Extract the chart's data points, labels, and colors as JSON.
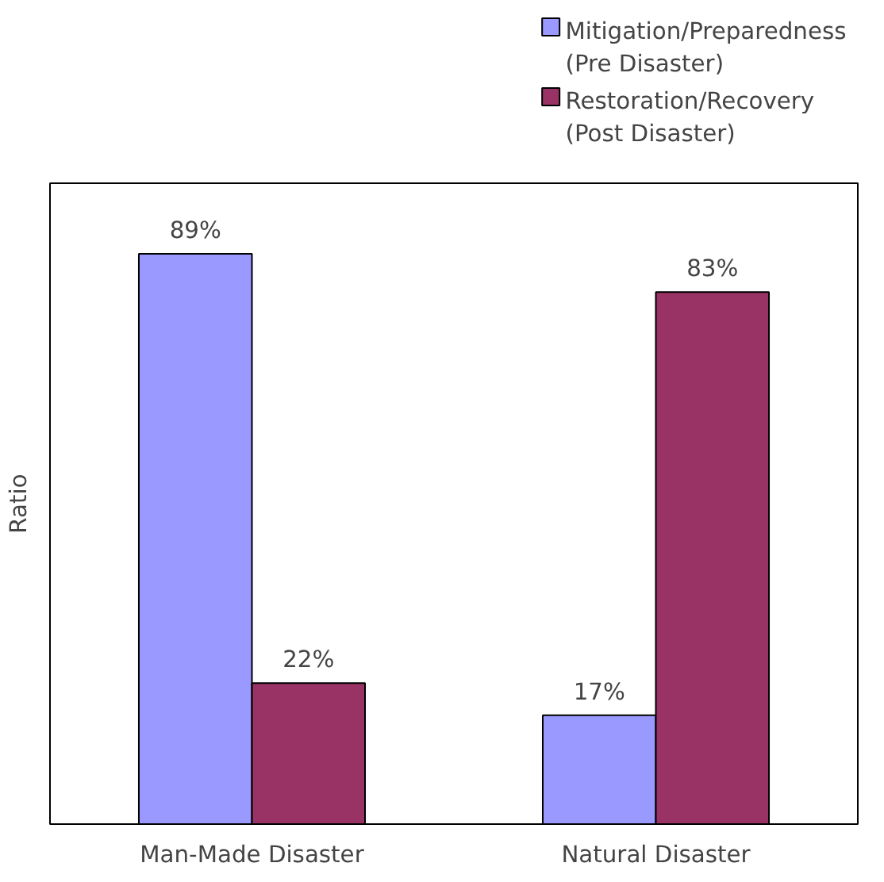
{
  "chart_data": {
    "type": "bar",
    "ylabel": "Ratio",
    "categories": [
      "Man-Made Disaster",
      "Natural Disaster"
    ],
    "series": [
      {
        "name": "Mitigation/Preparedness\n(Pre Disaster)",
        "color": "#9999ff",
        "values": [
          89,
          17
        ],
        "value_labels": [
          "89%",
          "17%"
        ]
      },
      {
        "name": "Restoration/Recovery\n(Post Disaster)",
        "color": "#993366",
        "values": [
          22,
          83
        ],
        "value_labels": [
          "22%",
          "83%"
        ]
      }
    ],
    "ylim": [
      0,
      100
    ],
    "legend": "top right",
    "grid": false
  }
}
